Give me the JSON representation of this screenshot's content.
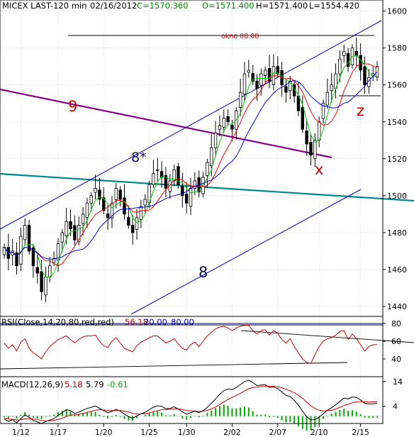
{
  "colors": {
    "background": "#ffffff",
    "grid": "#c8c8c8",
    "frame": "#000000",
    "candle_up": "#ffffff",
    "candle_down": "#000000",
    "ma_fast": "#00cc00",
    "ma_mid": "#ff0000",
    "ma_slow": "#0000ff",
    "channel": "#0000cc",
    "line_purple": "#880088",
    "line_teal": "#008888",
    "annotation_dark": "#101060",
    "annotation_red": "#cc0000",
    "rsi_line": "#cc0000",
    "rsi_level": "#000088",
    "macd_line": "#000000",
    "macd_signal": "#cc0000",
    "macd_hist": "#00aa00"
  },
  "header": {
    "symbol": "MICEX LAST-120 min",
    "date": "02/16/2012",
    "close": "C=1570.360",
    "open": "O=1571.400",
    "high": "H=1571.400",
    "low": "L=1554.420"
  },
  "annotations": {
    "wave_9": "9",
    "wave_8_star": "8*",
    "wave_8": "8",
    "wave_x": "x",
    "wave_z": "z",
    "okno": "okno 08.08"
  },
  "rsi_header": {
    "label": "RSI(Close,14,20,80,red,red)",
    "value": "56.18",
    "lower": "20.00",
    "upper": "80.00"
  },
  "macd_header": {
    "label": "MACD(12,26,9)",
    "macd": "5.18",
    "signal": "5.79",
    "hist": "-0.61"
  },
  "chart_data": [
    {
      "type": "candlestick",
      "title": "MICEX LAST-120 min",
      "ylim": [
        1430,
        1606
      ],
      "y_ticks": [
        1440,
        1460,
        1480,
        1500,
        1520,
        1540,
        1560,
        1580,
        1600
      ],
      "x_tick_labels": [
        "1/12",
        "1/17",
        "1/20",
        "1/25",
        "1/30",
        "2/02",
        "2/07",
        "2/10",
        "2/15"
      ],
      "series": [
        {
          "name": "",
          "values": [
            1472,
            1466,
            1470,
            1462,
            1478,
            1484,
            1470,
            1462,
            1458,
            1448,
            1456,
            1462,
            1466,
            1474,
            1480,
            1486,
            1482,
            1476,
            1484,
            1490,
            1496,
            1500,
            1504,
            1498,
            1492,
            1488,
            1496,
            1504,
            1498,
            1490,
            1484,
            1480,
            1488,
            1494,
            1498,
            1506,
            1512,
            1514,
            1510,
            1504,
            1508,
            1514,
            1506,
            1500,
            1496,
            1504,
            1508,
            1502,
            1510,
            1518,
            1526,
            1534,
            1538,
            1542,
            1540,
            1536,
            1546,
            1556,
            1566,
            1568,
            1562,
            1558,
            1566,
            1568,
            1562,
            1570,
            1566,
            1560,
            1556,
            1562,
            1554,
            1546,
            1536,
            1528,
            1522,
            1530,
            1540,
            1550,
            1556,
            1560,
            1566,
            1574,
            1578,
            1570,
            1580,
            1576,
            1568,
            1560,
            1564,
            1566,
            1570
          ]
        }
      ]
    },
    {
      "type": "line",
      "title": "RSI(Close,14,20,80,red,red)",
      "ylim": [
        20,
        88
      ],
      "y_ticks": [
        40,
        60,
        80
      ],
      "series": [
        {
          "name": "",
          "values": [
            58,
            52,
            56,
            49,
            59,
            63,
            52,
            47,
            44,
            40,
            48,
            54,
            58,
            62,
            64,
            66,
            62,
            58,
            62,
            65,
            66,
            66,
            67,
            60,
            55,
            53,
            60,
            64,
            58,
            52,
            50,
            48,
            55,
            59,
            61,
            64,
            66,
            66,
            62,
            58,
            60,
            63,
            57,
            52,
            50,
            56,
            59,
            54,
            60,
            66,
            70,
            74,
            76,
            77,
            75,
            72,
            75,
            77,
            78,
            78,
            72,
            68,
            72,
            73,
            67,
            72,
            69,
            62,
            58,
            63,
            54,
            47,
            40,
            36,
            35,
            45,
            54,
            60,
            63,
            64,
            67,
            71,
            72,
            62,
            68,
            63,
            56,
            49,
            54,
            56,
            56.18
          ]
        }
      ]
    },
    {
      "type": "line",
      "title": "MACD(12,26,9)",
      "ylim": [
        -3,
        16
      ],
      "y_ticks": [
        4,
        14
      ],
      "series": [
        {
          "name": "",
          "values": [
            -1.2,
            -2.1,
            -1.5,
            -2.7,
            -1.0,
            0.5,
            -0.4,
            -1.8,
            -2.4,
            -3.0,
            -2.2,
            -1.6,
            -1.0,
            0.3,
            1.4,
            2.6,
            2.2,
            1.1,
            1.6,
            2.4,
            3.1,
            3.6,
            4.1,
            3.2,
            2.2,
            1.4,
            1.9,
            2.8,
            2.0,
            0.8,
            -0.2,
            -0.8,
            0.1,
            0.9,
            1.6,
            2.6,
            3.6,
            4.2,
            4.0,
            3.0,
            3.1,
            3.8,
            2.9,
            1.7,
            0.8,
            1.4,
            2.0,
            1.4,
            2.2,
            3.6,
            5.2,
            7.0,
            8.8,
            10.4,
            11.0,
            10.8,
            11.6,
            12.8,
            14.0,
            14.6,
            13.6,
            12.4,
            12.6,
            12.8,
            11.6,
            11.8,
            11.2,
            9.8,
            8.4,
            8.0,
            6.4,
            4.4,
            2.0,
            -0.2,
            -1.6,
            -1.4,
            -0.4,
            1.0,
            2.4,
            3.4,
            4.6,
            6.0,
            7.3,
            7.0,
            7.8,
            7.6,
            6.6,
            5.2,
            5.0,
            5.0,
            5.18
          ]
        },
        {
          "name": "",
          "values": [
            -0.8,
            -1.2,
            -1.3,
            -1.6,
            -1.5,
            -1.1,
            -1.0,
            -1.2,
            -1.4,
            -1.8,
            -1.9,
            -1.9,
            -1.7,
            -1.3,
            -0.8,
            -0.1,
            0.4,
            0.5,
            0.7,
            1.1,
            1.5,
            1.9,
            2.4,
            2.6,
            2.5,
            2.3,
            2.2,
            2.3,
            2.3,
            2.0,
            1.6,
            1.1,
            0.9,
            0.9,
            1.0,
            1.3,
            1.8,
            2.2,
            2.6,
            2.7,
            2.8,
            3.0,
            3.0,
            2.7,
            2.3,
            2.1,
            2.1,
            1.9,
            2.0,
            2.3,
            2.9,
            3.7,
            4.7,
            5.8,
            6.8,
            7.6,
            8.4,
            9.3,
            10.2,
            11.1,
            11.6,
            11.8,
            12.0,
            12.2,
            12.1,
            12.1,
            11.9,
            11.5,
            10.9,
            10.3,
            9.5,
            8.5,
            7.2,
            5.7,
            4.2,
            3.1,
            2.4,
            2.1,
            2.2,
            2.4,
            2.9,
            3.5,
            4.3,
            4.8,
            5.4,
            5.8,
            5.9,
            5.8,
            5.7,
            5.8,
            5.79
          ]
        }
      ]
    }
  ]
}
